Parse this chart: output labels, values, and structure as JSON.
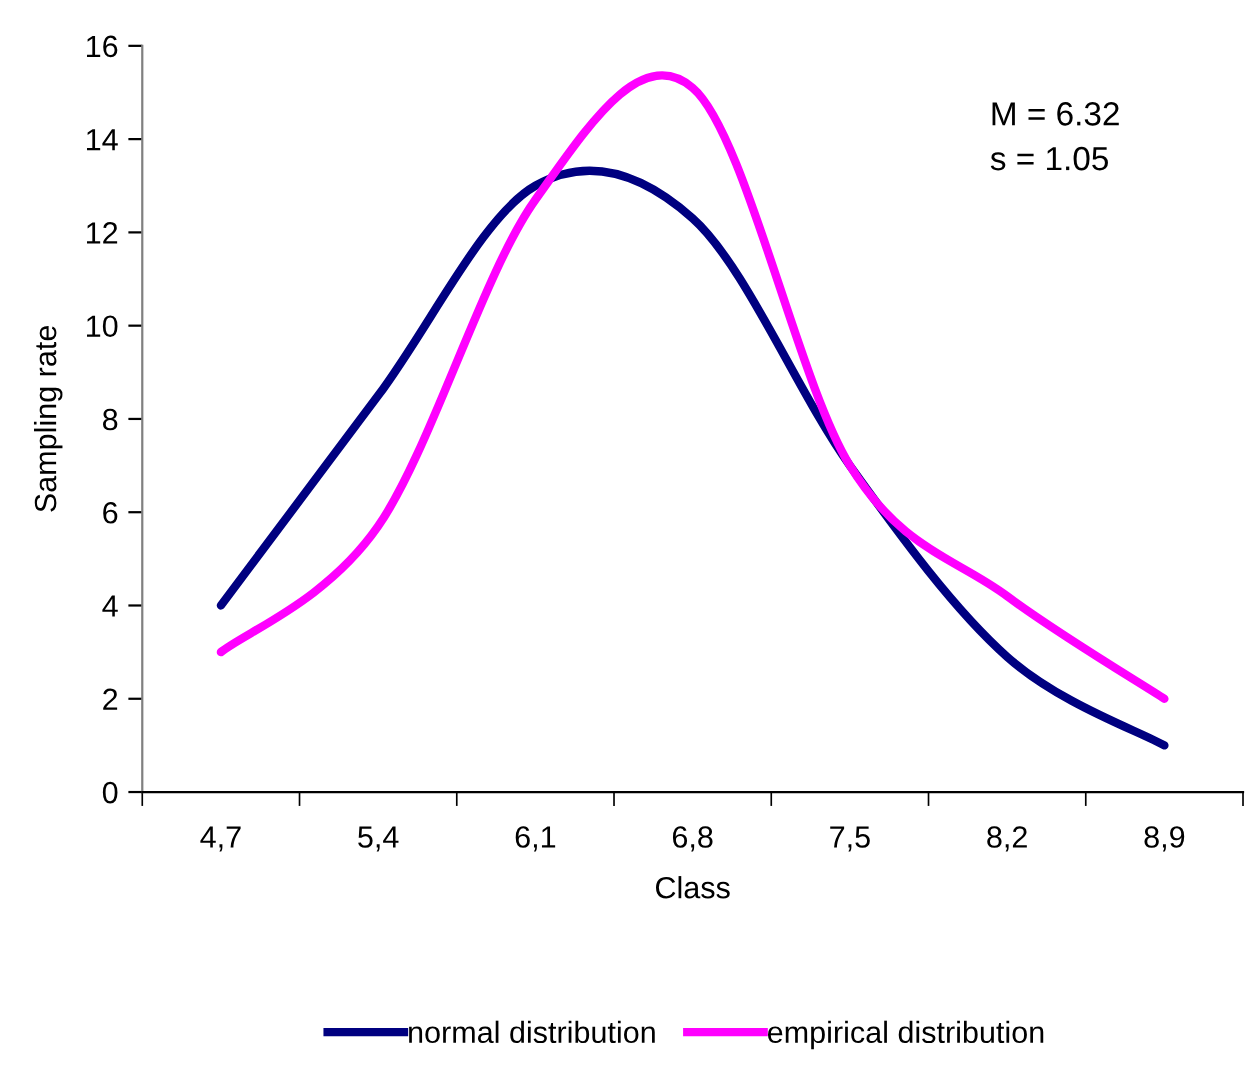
{
  "chart_data": {
    "type": "line",
    "xlabel": "Class",
    "ylabel": "Sampling rate",
    "categories": [
      "4,7",
      "5,4",
      "6,1",
      "6,8",
      "7,5",
      "8,2",
      "8,9"
    ],
    "series": [
      {
        "name": "normal distribution",
        "color": "#000080",
        "values": [
          4,
          8.5,
          13,
          12.3,
          7,
          2.9,
          1
        ]
      },
      {
        "name": "empirical distribution",
        "color": "#ff00ff",
        "values": [
          3,
          5.7,
          12.7,
          15.1,
          7,
          4.2,
          2
        ]
      }
    ],
    "ylim": [
      0,
      16
    ],
    "yticks": [
      0,
      2,
      4,
      6,
      8,
      10,
      12,
      14,
      16
    ],
    "annotations": [
      "M = 6.32",
      "s = 1.05"
    ],
    "grid": false,
    "legend": "bottom",
    "marker": "none",
    "line_style": "solid"
  }
}
